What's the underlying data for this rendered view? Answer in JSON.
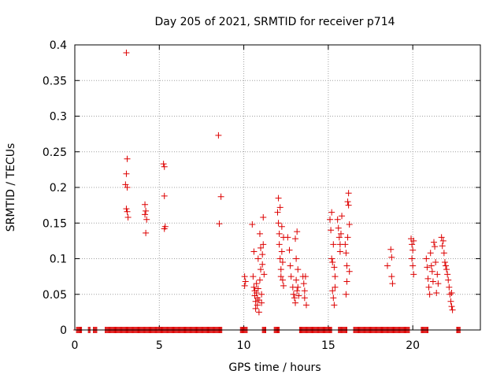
{
  "chart_data": {
    "type": "scatter",
    "title": "Day 205 of 2021, SRMTID for receiver p714",
    "xlabel": "GPS time / hours",
    "ylabel": "SRMTID / TECUs",
    "xlim": [
      0,
      24
    ],
    "ylim": [
      0,
      0.4
    ],
    "grid": true,
    "marker": "+",
    "color": "#dd0000",
    "x_ticks": [
      {
        "value": 0,
        "label": "0"
      },
      {
        "value": 5,
        "label": "5"
      },
      {
        "value": 10,
        "label": "10"
      },
      {
        "value": 15,
        "label": "15"
      },
      {
        "value": 20,
        "label": "20"
      }
    ],
    "y_ticks": [
      {
        "value": 0,
        "label": "0"
      },
      {
        "value": 0.05,
        "label": "0.05"
      },
      {
        "value": 0.1,
        "label": "0.1"
      },
      {
        "value": 0.15,
        "label": "0.15"
      },
      {
        "value": 0.2,
        "label": "0.2"
      },
      {
        "value": 0.25,
        "label": "0.25"
      },
      {
        "value": 0.3,
        "label": "0.3"
      },
      {
        "value": 0.35,
        "label": "0.35"
      },
      {
        "value": 0.4,
        "label": "0.4"
      }
    ],
    "zero_baseline_ranges": [
      [
        0.1,
        0.4
      ],
      [
        0.8,
        0.9
      ],
      [
        1.1,
        1.3
      ],
      [
        1.8,
        8.7
      ],
      [
        9.8,
        10.2
      ],
      [
        11.1,
        11.3
      ],
      [
        11.8,
        12.1
      ],
      [
        13.3,
        15.2
      ],
      [
        15.6,
        16.1
      ],
      [
        16.5,
        19.8
      ],
      [
        20.5,
        20.9
      ],
      [
        22.6,
        22.8
      ]
    ],
    "series": [
      {
        "name": "SRMTID",
        "points": [
          [
            3.05,
            0.389
          ],
          [
            3.1,
            0.24
          ],
          [
            3.05,
            0.219
          ],
          [
            3.0,
            0.204
          ],
          [
            3.1,
            0.2
          ],
          [
            3.05,
            0.17
          ],
          [
            3.1,
            0.166
          ],
          [
            3.15,
            0.158
          ],
          [
            4.15,
            0.176
          ],
          [
            4.2,
            0.167
          ],
          [
            4.15,
            0.162
          ],
          [
            4.25,
            0.155
          ],
          [
            4.2,
            0.136
          ],
          [
            5.25,
            0.233
          ],
          [
            5.3,
            0.229
          ],
          [
            5.3,
            0.188
          ],
          [
            5.35,
            0.145
          ],
          [
            5.3,
            0.142
          ],
          [
            8.5,
            0.273
          ],
          [
            8.65,
            0.187
          ],
          [
            8.55,
            0.149
          ],
          [
            10.05,
            0.075
          ],
          [
            10.1,
            0.068
          ],
          [
            10.05,
            0.062
          ],
          [
            10.5,
            0.148
          ],
          [
            10.55,
            0.075
          ],
          [
            10.6,
            0.11
          ],
          [
            10.6,
            0.06
          ],
          [
            10.65,
            0.055
          ],
          [
            10.65,
            0.048
          ],
          [
            10.7,
            0.04
          ],
          [
            10.7,
            0.03
          ],
          [
            10.75,
            0.065
          ],
          [
            10.75,
            0.052
          ],
          [
            10.8,
            0.045
          ],
          [
            10.8,
            0.035
          ],
          [
            10.85,
            0.1
          ],
          [
            10.85,
            0.058
          ],
          [
            10.9,
            0.042
          ],
          [
            10.9,
            0.025
          ],
          [
            10.95,
            0.135
          ],
          [
            10.95,
            0.07
          ],
          [
            11.0,
            0.115
          ],
          [
            11.0,
            0.085
          ],
          [
            11.05,
            0.05
          ],
          [
            11.05,
            0.038
          ],
          [
            11.1,
            0.092
          ],
          [
            11.1,
            0.106
          ],
          [
            11.15,
            0.158
          ],
          [
            11.15,
            0.12
          ],
          [
            11.2,
            0.078
          ],
          [
            12.0,
            0.165
          ],
          [
            12.05,
            0.185
          ],
          [
            12.05,
            0.15
          ],
          [
            12.1,
            0.135
          ],
          [
            12.1,
            0.12
          ],
          [
            12.15,
            0.172
          ],
          [
            12.15,
            0.1
          ],
          [
            12.2,
            0.085
          ],
          [
            12.2,
            0.075
          ],
          [
            12.25,
            0.145
          ],
          [
            12.25,
            0.11
          ],
          [
            12.3,
            0.095
          ],
          [
            12.3,
            0.07
          ],
          [
            12.35,
            0.13
          ],
          [
            12.35,
            0.062
          ],
          [
            12.6,
            0.13
          ],
          [
            12.7,
            0.112
          ],
          [
            12.75,
            0.09
          ],
          [
            12.8,
            0.075
          ],
          [
            12.9,
            0.06
          ],
          [
            12.95,
            0.05
          ],
          [
            13.0,
            0.045
          ],
          [
            13.05,
            0.128
          ],
          [
            13.05,
            0.038
          ],
          [
            13.1,
            0.1
          ],
          [
            13.1,
            0.07
          ],
          [
            13.15,
            0.138
          ],
          [
            13.15,
            0.055
          ],
          [
            13.2,
            0.085
          ],
          [
            13.2,
            0.06
          ],
          [
            13.25,
            0.048
          ],
          [
            13.5,
            0.075
          ],
          [
            13.55,
            0.065
          ],
          [
            13.6,
            0.055
          ],
          [
            13.6,
            0.045
          ],
          [
            13.65,
            0.075
          ],
          [
            13.7,
            0.035
          ],
          [
            15.1,
            0.155
          ],
          [
            15.15,
            0.14
          ],
          [
            15.2,
            0.165
          ],
          [
            15.2,
            0.1
          ],
          [
            15.25,
            0.095
          ],
          [
            15.25,
            0.055
          ],
          [
            15.3,
            0.12
          ],
          [
            15.3,
            0.045
          ],
          [
            15.35,
            0.088
          ],
          [
            15.35,
            0.035
          ],
          [
            15.4,
            0.075
          ],
          [
            15.4,
            0.06
          ],
          [
            15.55,
            0.155
          ],
          [
            15.6,
            0.143
          ],
          [
            15.65,
            0.13
          ],
          [
            15.7,
            0.12
          ],
          [
            15.7,
            0.11
          ],
          [
            15.75,
            0.135
          ],
          [
            15.8,
            0.16
          ],
          [
            16.0,
            0.12
          ],
          [
            16.05,
            0.108
          ],
          [
            16.05,
            0.05
          ],
          [
            16.1,
            0.09
          ],
          [
            16.1,
            0.068
          ],
          [
            16.15,
            0.18
          ],
          [
            16.15,
            0.13
          ],
          [
            16.2,
            0.192
          ],
          [
            16.2,
            0.175
          ],
          [
            16.25,
            0.148
          ],
          [
            16.25,
            0.082
          ],
          [
            18.5,
            0.09
          ],
          [
            18.7,
            0.113
          ],
          [
            18.75,
            0.102
          ],
          [
            18.75,
            0.075
          ],
          [
            18.8,
            0.065
          ],
          [
            19.9,
            0.128
          ],
          [
            19.95,
            0.12
          ],
          [
            19.95,
            0.1
          ],
          [
            20.0,
            0.112
          ],
          [
            20.0,
            0.09
          ],
          [
            20.05,
            0.125
          ],
          [
            20.05,
            0.078
          ],
          [
            20.8,
            0.1
          ],
          [
            20.85,
            0.088
          ],
          [
            20.9,
            0.072
          ],
          [
            20.95,
            0.06
          ],
          [
            21.0,
            0.05
          ],
          [
            21.05,
            0.108
          ],
          [
            21.1,
            0.09
          ],
          [
            21.15,
            0.082
          ],
          [
            21.2,
            0.068
          ],
          [
            21.25,
            0.123
          ],
          [
            21.3,
            0.117
          ],
          [
            21.35,
            0.095
          ],
          [
            21.4,
            0.052
          ],
          [
            21.45,
            0.078
          ],
          [
            21.5,
            0.065
          ],
          [
            21.7,
            0.13
          ],
          [
            21.75,
            0.118
          ],
          [
            21.8,
            0.125
          ],
          [
            21.85,
            0.108
          ],
          [
            21.9,
            0.095
          ],
          [
            21.95,
            0.09
          ],
          [
            22.0,
            0.085
          ],
          [
            22.05,
            0.078
          ],
          [
            22.1,
            0.07
          ],
          [
            22.15,
            0.06
          ],
          [
            22.2,
            0.05
          ],
          [
            22.25,
            0.04
          ],
          [
            22.3,
            0.033
          ],
          [
            22.35,
            0.028
          ],
          [
            22.3,
            0.052
          ]
        ]
      }
    ]
  }
}
